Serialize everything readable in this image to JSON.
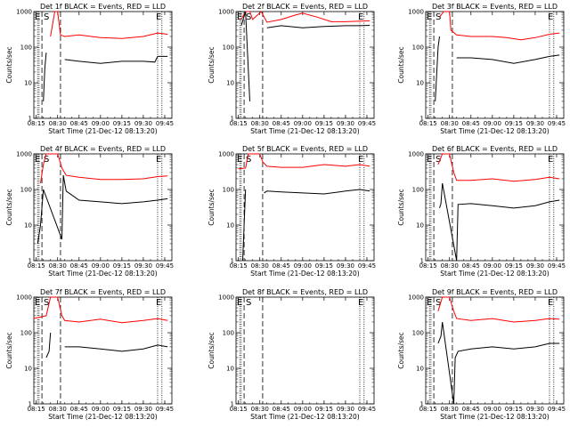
{
  "figure": {
    "ylabel": "Counts/sec",
    "xlabel": "Start Time (21-Dec-12 08:13:20)",
    "x_tick_labels": [
      "08:15",
      "08:30",
      "08:45",
      "09:00",
      "09:15",
      "09:30",
      "09:45"
    ],
    "y_tick_labels": [
      "1",
      "10",
      "100",
      "1000"
    ],
    "markers": {
      "e": "E",
      "s": "S",
      "e_end": "E"
    },
    "colors": {
      "events": "#000000",
      "lld": "#ff0000"
    }
  },
  "chart_data": [
    {
      "type": "line",
      "title": "Det 1f BLACK = Events, RED = LLD",
      "xlim": [
        "08:13:20",
        "09:50:00"
      ],
      "ylim": [
        1,
        1000
      ],
      "y_scale": "log",
      "series": [
        {
          "name": "LLD",
          "color": "#ff0000",
          "x": [
            "08:25",
            "08:28",
            "08:30",
            "08:32",
            "08:35",
            "08:45",
            "09:00",
            "09:15",
            "09:30",
            "09:40",
            "09:47"
          ],
          "y": [
            200,
            1000,
            1000,
            220,
            200,
            220,
            185,
            175,
            200,
            250,
            230
          ]
        },
        {
          "name": "Events",
          "color": "#000000",
          "x": [
            "08:20",
            "08:21",
            "08:22",
            "08:32",
            "08:35",
            "08:45",
            "09:00",
            "09:15",
            "09:30",
            "09:38",
            "09:40",
            "09:47"
          ],
          "y": [
            3,
            25,
            70,
            "",
            "45",
            "40",
            "35",
            "40",
            "40",
            "38",
            "55",
            "55"
          ]
        }
      ]
    },
    {
      "type": "line",
      "title": "Det 2f BLACK = Events, RED = LLD",
      "xlim": [
        "08:13:20",
        "09:50:00"
      ],
      "ylim": [
        1,
        1000
      ],
      "y_scale": "log",
      "series": [
        {
          "name": "LLD",
          "color": "#ff0000",
          "x": [
            "08:17",
            "08:20",
            "08:23",
            "08:25",
            "08:31",
            "08:35",
            "08:45",
            "08:55",
            "09:00",
            "09:10",
            "09:20",
            "09:30",
            "09:47"
          ],
          "y": [
            600,
            1000,
            1000,
            600,
            1000,
            500,
            600,
            800,
            900,
            700,
            520,
            520,
            550
          ]
        },
        {
          "name": "Events",
          "color": "#000000",
          "x": [
            "08:17",
            "08:20",
            "08:23",
            "08:31",
            "08:35",
            "08:45",
            "09:00",
            "09:15",
            "09:30",
            "09:40",
            "09:47"
          ],
          "y": [
            400,
            1000,
            3,
            "",
            "350",
            "400",
            "350",
            "380",
            "400",
            "400",
            "410"
          ]
        }
      ]
    },
    {
      "type": "line",
      "title": "Det 3f BLACK = Events, RED = LLD",
      "xlim": [
        "08:13:20",
        "09:50:00"
      ],
      "ylim": [
        1,
        1000
      ],
      "y_scale": "log",
      "series": [
        {
          "name": "LLD",
          "color": "#ff0000",
          "x": [
            "08:23",
            "08:26",
            "08:30",
            "08:31",
            "08:35",
            "08:45",
            "09:00",
            "09:10",
            "09:20",
            "09:30",
            "09:40",
            "09:47"
          ],
          "y": [
            700,
            1000,
            1000,
            300,
            220,
            200,
            200,
            185,
            160,
            185,
            230,
            250
          ]
        },
        {
          "name": "Events",
          "color": "#000000",
          "x": [
            "08:20",
            "08:22",
            "08:23",
            "08:31",
            "08:35",
            "08:45",
            "09:00",
            "09:15",
            "09:30",
            "09:40",
            "09:47"
          ],
          "y": [
            3,
            100,
            200,
            "",
            "50",
            "50",
            "45",
            "35",
            "45",
            "55",
            "60"
          ]
        }
      ]
    },
    {
      "type": "line",
      "title": "Det 4f BLACK = Events, RED = LLD",
      "xlim": [
        "08:13:20",
        "09:50:00"
      ],
      "ylim": [
        1,
        1000
      ],
      "y_scale": "log",
      "series": [
        {
          "name": "LLD",
          "color": "#ff0000",
          "x": [
            "08:18",
            "08:20",
            "08:22",
            "08:30",
            "08:33",
            "08:36",
            "08:45",
            "09:00",
            "09:15",
            "09:30",
            "09:40",
            "09:47"
          ],
          "y": [
            150,
            500,
            1000,
            1000,
            400,
            250,
            220,
            190,
            190,
            200,
            230,
            240
          ]
        },
        {
          "name": "Events",
          "color": "#000000",
          "x": [
            "08:16",
            "08:18",
            "08:20",
            "08:33",
            "08:34",
            "08:36",
            "08:45",
            "09:00",
            "09:15",
            "09:30",
            "09:40",
            "09:47"
          ],
          "y": [
            3,
            10,
            100,
            4,
            250,
            90,
            50,
            45,
            40,
            45,
            50,
            55
          ]
        }
      ]
    },
    {
      "type": "line",
      "title": "Det 5f BLACK = Events, RED = LLD",
      "xlim": [
        "08:13:20",
        "09:50:00"
      ],
      "ylim": [
        1,
        1000
      ],
      "y_scale": "log",
      "series": [
        {
          "name": "LLD",
          "color": "#ff0000",
          "x": [
            "08:15",
            "08:20",
            "08:22",
            "08:27",
            "08:30",
            "08:32",
            "08:35",
            "08:45",
            "09:00",
            "09:15",
            "09:30",
            "09:40",
            "09:47"
          ],
          "y": [
            380,
            400,
            1000,
            1000,
            1000,
            600,
            450,
            420,
            420,
            500,
            450,
            500,
            450
          ]
        },
        {
          "name": "Events",
          "color": "#000000",
          "x": [
            "08:18",
            "08:19",
            "08:20",
            "08:32",
            "08:33",
            "08:35",
            "08:45",
            "09:00",
            "09:15",
            "09:30",
            "09:40",
            "09:47"
          ],
          "y": [
            1,
            10,
            100,
            "",
            "80",
            "90",
            "85",
            "80",
            "75",
            "90",
            "100",
            "90"
          ]
        }
      ]
    },
    {
      "type": "line",
      "title": "Det 6f BLACK = Events, RED = LLD",
      "xlim": [
        "08:13:20",
        "09:50:00"
      ],
      "ylim": [
        1,
        1000
      ],
      "y_scale": "log",
      "series": [
        {
          "name": "LLD",
          "color": "#ff0000",
          "x": [
            "08:22",
            "08:25",
            "08:30",
            "08:33",
            "08:35",
            "08:45",
            "09:00",
            "09:15",
            "09:30",
            "09:40",
            "09:47"
          ],
          "y": [
            500,
            1000,
            1000,
            300,
            180,
            180,
            200,
            170,
            190,
            220,
            200
          ]
        },
        {
          "name": "Events",
          "color": "#000000",
          "x": [
            "08:23",
            "08:24",
            "08:25",
            "08:35",
            "08:36",
            "08:45",
            "09:00",
            "09:15",
            "09:30",
            "09:40",
            "09:47"
          ],
          "y": [
            30,
            40,
            150,
            1,
            38,
            40,
            35,
            30,
            35,
            45,
            50
          ]
        }
      ]
    },
    {
      "type": "line",
      "title": "Det 7f BLACK = Events, RED = LLD",
      "xlim": [
        "08:13:20",
        "09:50:00"
      ],
      "ylim": [
        1,
        1000
      ],
      "y_scale": "log",
      "series": [
        {
          "name": "LLD",
          "color": "#ff0000",
          "x": [
            "08:13",
            "08:22",
            "08:25",
            "08:30",
            "08:33",
            "08:35",
            "08:45",
            "09:00",
            "09:15",
            "09:30",
            "09:40",
            "09:47"
          ],
          "y": [
            250,
            300,
            1000,
            1000,
            300,
            220,
            200,
            240,
            190,
            220,
            250,
            220
          ]
        },
        {
          "name": "Events",
          "color": "#000000",
          "x": [
            "08:22",
            "08:24",
            "08:25",
            "08:34",
            "08:35",
            "08:45",
            "09:00",
            "09:15",
            "09:30",
            "09:40",
            "09:47"
          ],
          "y": [
            20,
            30,
            100,
            "",
            "40",
            "40",
            "35",
            "30",
            "35",
            "45",
            "40"
          ]
        }
      ]
    },
    {
      "type": "line",
      "title": "Det 8f BLACK = Events, RED = LLD",
      "xlim": [
        "08:13:20",
        "09:50:00"
      ],
      "ylim": [
        1,
        1000
      ],
      "y_scale": "log",
      "series": []
    },
    {
      "type": "line",
      "title": "Det 9f BLACK = Events, RED = LLD",
      "xlim": [
        "08:13:20",
        "09:50:00"
      ],
      "ylim": [
        1,
        1000
      ],
      "y_scale": "log",
      "series": [
        {
          "name": "LLD",
          "color": "#ff0000",
          "x": [
            "08:22",
            "08:25",
            "08:30",
            "08:33",
            "08:35",
            "08:45",
            "09:00",
            "09:15",
            "09:30",
            "09:40",
            "09:47"
          ],
          "y": [
            400,
            1000,
            1000,
            400,
            250,
            220,
            250,
            200,
            220,
            250,
            240
          ]
        },
        {
          "name": "Events",
          "color": "#000000",
          "x": [
            "08:22",
            "08:24",
            "08:25",
            "08:33",
            "08:34",
            "08:36",
            "08:45",
            "09:00",
            "09:15",
            "09:30",
            "09:40",
            "09:47"
          ],
          "y": [
            50,
            80,
            200,
            1,
            20,
            30,
            35,
            40,
            35,
            40,
            50,
            50
          ]
        }
      ]
    }
  ]
}
